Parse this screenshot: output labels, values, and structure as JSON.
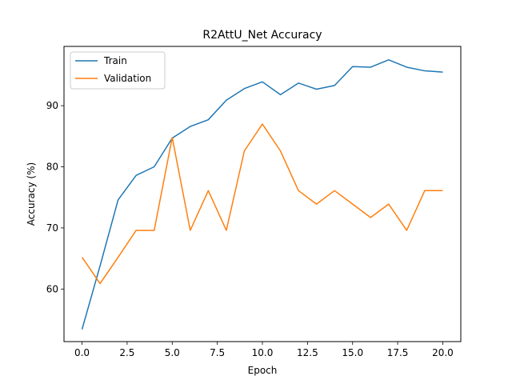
{
  "chart_data": {
    "type": "line",
    "title": "R2AttU_Net Accuracy",
    "xlabel": "Epoch",
    "ylabel": "Accuracy (%)",
    "xlim": [
      -1.0,
      21.0
    ],
    "ylim": [
      51.4,
      99.7
    ],
    "xticks": [
      0.0,
      2.5,
      5.0,
      7.5,
      10.0,
      12.5,
      15.0,
      17.5,
      20.0
    ],
    "xtick_labels": [
      "0.0",
      "2.5",
      "5.0",
      "7.5",
      "10.0",
      "12.5",
      "15.0",
      "17.5",
      "20.0"
    ],
    "yticks": [
      60,
      70,
      80,
      90
    ],
    "ytick_labels": [
      "60",
      "70",
      "80",
      "90"
    ],
    "grid": false,
    "legend_position": "upper-left",
    "x": [
      0,
      1,
      2,
      3,
      4,
      5,
      6,
      7,
      8,
      9,
      10,
      11,
      12,
      13,
      14,
      15,
      16,
      17,
      18,
      19,
      20
    ],
    "series": [
      {
        "name": "Train",
        "color": "#1f77b4",
        "values": [
          53.4,
          63.8,
          74.6,
          78.6,
          80.0,
          84.7,
          86.6,
          87.7,
          90.9,
          92.8,
          93.9,
          91.8,
          93.7,
          92.7,
          93.3,
          96.4,
          96.3,
          97.5,
          96.3,
          95.7,
          95.5
        ]
      },
      {
        "name": "Validation",
        "color": "#ff7f0e",
        "values": [
          65.2,
          60.9,
          65.2,
          69.6,
          69.6,
          84.8,
          69.6,
          76.1,
          69.6,
          82.6,
          87.0,
          82.6,
          76.1,
          73.9,
          76.1,
          73.9,
          71.7,
          73.9,
          69.6,
          76.1,
          76.1
        ]
      }
    ]
  }
}
